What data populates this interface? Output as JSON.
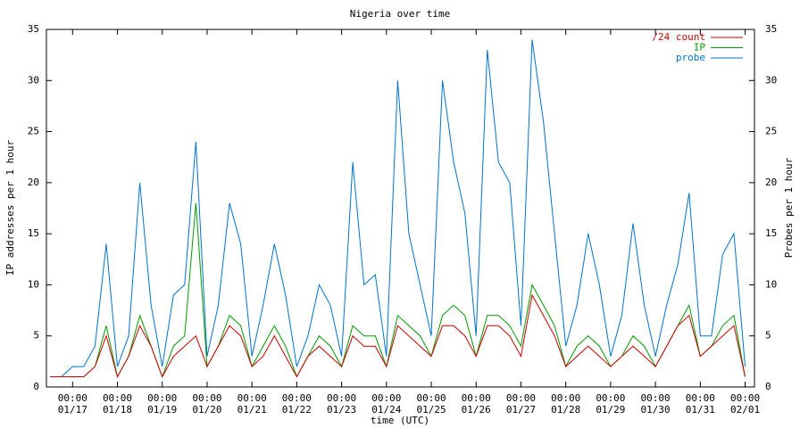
{
  "chart_data": {
    "type": "line",
    "title": "Nigeria over time",
    "xlabel": "time (UTC)",
    "ylabel": "IP addresses per 1 hour",
    "y2label": "Probes per 1 hour",
    "xlim": [
      "01/16 10:00",
      "02/01 05:00"
    ],
    "xticks": [
      {
        "value": "01/17 00:00",
        "label": [
          "00:00",
          "01/17"
        ]
      },
      {
        "value": "01/18 00:00",
        "label": [
          "00:00",
          "01/18"
        ]
      },
      {
        "value": "01/19 00:00",
        "label": [
          "00:00",
          "01/19"
        ]
      },
      {
        "value": "01/20 00:00",
        "label": [
          "00:00",
          "01/20"
        ]
      },
      {
        "value": "01/21 00:00",
        "label": [
          "00:00",
          "01/21"
        ]
      },
      {
        "value": "01/22 00:00",
        "label": [
          "00:00",
          "01/22"
        ]
      },
      {
        "value": "01/23 00:00",
        "label": [
          "00:00",
          "01/23"
        ]
      },
      {
        "value": "01/24 00:00",
        "label": [
          "00:00",
          "01/24"
        ]
      },
      {
        "value": "01/25 00:00",
        "label": [
          "00:00",
          "01/25"
        ]
      },
      {
        "value": "01/26 00:00",
        "label": [
          "00:00",
          "01/26"
        ]
      },
      {
        "value": "01/27 00:00",
        "label": [
          "00:00",
          "01/27"
        ]
      },
      {
        "value": "01/28 00:00",
        "label": [
          "00:00",
          "01/28"
        ]
      },
      {
        "value": "01/29 00:00",
        "label": [
          "00:00",
          "01/29"
        ]
      },
      {
        "value": "01/30 00:00",
        "label": [
          "00:00",
          "01/30"
        ]
      },
      {
        "value": "01/31 00:00",
        "label": [
          "00:00",
          "01/31"
        ]
      },
      {
        "value": "02/01 00:00",
        "label": [
          "00:00",
          "02/01"
        ]
      }
    ],
    "ylim": [
      0,
      35
    ],
    "yticks": [
      0,
      5,
      10,
      15,
      20,
      25,
      30,
      35
    ],
    "y2lim": [
      0,
      35
    ],
    "y2ticks": [
      0,
      5,
      10,
      15,
      20,
      25,
      30,
      35
    ],
    "legend": "top-right",
    "x": [
      "01/16 12:00",
      "01/16 18:00",
      "01/17 00:00",
      "01/17 06:00",
      "01/17 12:00",
      "01/17 18:00",
      "01/18 00:00",
      "01/18 06:00",
      "01/18 12:00",
      "01/18 18:00",
      "01/19 00:00",
      "01/19 06:00",
      "01/19 12:00",
      "01/19 18:00",
      "01/20 00:00",
      "01/20 06:00",
      "01/20 12:00",
      "01/20 18:00",
      "01/21 00:00",
      "01/21 06:00",
      "01/21 12:00",
      "01/21 18:00",
      "01/22 00:00",
      "01/22 06:00",
      "01/22 12:00",
      "01/22 18:00",
      "01/23 00:00",
      "01/23 06:00",
      "01/23 12:00",
      "01/23 18:00",
      "01/24 00:00",
      "01/24 06:00",
      "01/24 12:00",
      "01/24 18:00",
      "01/25 00:00",
      "01/25 06:00",
      "01/25 12:00",
      "01/25 18:00",
      "01/26 00:00",
      "01/26 06:00",
      "01/26 12:00",
      "01/26 18:00",
      "01/27 00:00",
      "01/27 06:00",
      "01/27 12:00",
      "01/27 18:00",
      "01/28 00:00",
      "01/28 06:00",
      "01/28 12:00",
      "01/28 18:00",
      "01/29 00:00",
      "01/29 06:00",
      "01/29 12:00",
      "01/29 18:00",
      "01/30 00:00",
      "01/30 06:00",
      "01/30 12:00",
      "01/30 18:00",
      "01/31 00:00",
      "01/31 06:00",
      "01/31 12:00",
      "01/31 18:00",
      "02/01 00:00"
    ],
    "series": [
      {
        "name": "/24 count",
        "color": "#cc0000",
        "values": [
          1,
          1,
          1,
          1,
          2,
          5,
          1,
          3,
          6,
          4,
          1,
          3,
          4,
          5,
          2,
          4,
          6,
          5,
          2,
          3,
          5,
          3,
          1,
          3,
          4,
          3,
          2,
          5,
          4,
          4,
          2,
          6,
          5,
          4,
          3,
          6,
          6,
          5,
          3,
          6,
          6,
          5,
          3,
          9,
          7,
          5,
          2,
          3,
          4,
          3,
          2,
          3,
          4,
          3,
          2,
          4,
          6,
          7,
          3,
          4,
          5,
          6,
          1
        ]
      },
      {
        "name": "IP",
        "color": "#009900",
        "values": [
          1,
          1,
          1,
          1,
          2,
          6,
          1,
          3,
          7,
          4,
          1,
          4,
          5,
          18,
          2,
          4,
          7,
          6,
          2,
          4,
          6,
          4,
          1,
          3,
          5,
          4,
          2,
          6,
          5,
          5,
          2,
          7,
          6,
          5,
          3,
          7,
          8,
          7,
          3,
          7,
          7,
          6,
          4,
          10,
          8,
          6,
          2,
          4,
          5,
          4,
          2,
          3,
          5,
          4,
          2,
          4,
          6,
          8,
          3,
          4,
          6,
          7,
          1
        ]
      },
      {
        "name": "probe",
        "color": "#0072cc",
        "axis": "y2",
        "values": [
          1,
          1,
          2,
          2,
          4,
          14,
          2,
          5,
          20,
          8,
          2,
          9,
          10,
          24,
          3,
          8,
          18,
          14,
          3,
          8,
          14,
          9,
          2,
          5,
          10,
          8,
          3,
          22,
          10,
          11,
          3,
          30,
          15,
          10,
          5,
          30,
          22,
          17,
          5,
          33,
          22,
          20,
          6,
          34,
          26,
          15,
          4,
          8,
          15,
          10,
          3,
          7,
          16,
          8,
          3,
          8,
          12,
          19,
          5,
          5,
          13,
          15,
          2
        ]
      }
    ]
  }
}
